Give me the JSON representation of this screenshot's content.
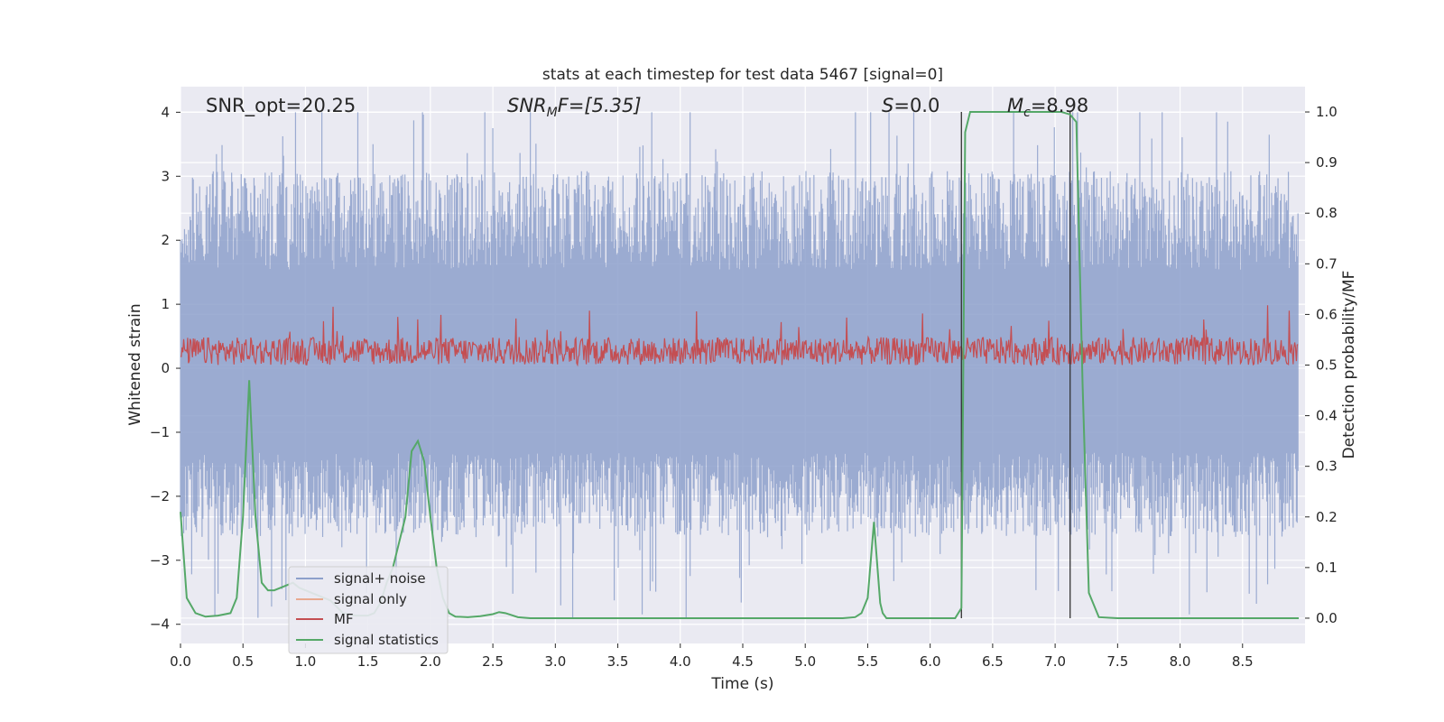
{
  "chart_data": {
    "type": "line",
    "title": "stats at each timestep for test data 5467 [signal=0]",
    "xlabel": "Time (s)",
    "ylabel_left": "Whitened strain",
    "ylabel_right": "Detection probability/MF",
    "xlim": [
      0,
      9
    ],
    "ylim_left": [
      -4.3,
      4.4
    ],
    "ylim_right": [
      -0.05,
      1.05
    ],
    "x_ticks": [
      0,
      0.5,
      1,
      1.5,
      2,
      2.5,
      3,
      3.5,
      4,
      4.5,
      5,
      5.5,
      6,
      6.5,
      7,
      7.5,
      8,
      8.5
    ],
    "x_tick_labels": [
      "0.0",
      "0.5",
      "1.0",
      "1.5",
      "2.0",
      "2.5",
      "3.0",
      "3.5",
      "4.0",
      "4.5",
      "5.0",
      "5.5",
      "6.0",
      "6.5",
      "7.0",
      "7.5",
      "8.0",
      "8.5"
    ],
    "y_left_ticks": [
      4,
      3,
      2,
      1,
      0,
      -1,
      -2,
      -3,
      -4
    ],
    "y_left_tick_labels": [
      "4",
      "3",
      "2",
      "1",
      "0",
      "−1",
      "−2",
      "−3",
      "−4"
    ],
    "y_right_ticks": [
      1.0,
      0.9,
      0.8,
      0.7,
      0.6,
      0.5,
      0.4,
      0.3,
      0.2,
      0.1,
      0.0
    ],
    "y_right_tick_labels": [
      "1.0",
      "0.9",
      "0.8",
      "0.7",
      "0.6",
      "0.5",
      "0.4",
      "0.3",
      "0.2",
      "0.1",
      "0.0"
    ],
    "grid": true,
    "legend_position": "lower-left",
    "annotations": {
      "snr_opt": "SNR_opt=20.25",
      "snr_mf_base": "SNR",
      "snr_mf_sub": "M",
      "snr_mf_rest": "F=[5.35]",
      "s_value_var": "S",
      "s_value_rest": "=0.0",
      "mc_var": "M",
      "mc_sub": "c",
      "mc_rest": "=8.98"
    },
    "vertical_markers": [
      6.25,
      7.12
    ],
    "series": [
      {
        "name": "signal+ noise",
        "color": "#8da0cb",
        "axis": "left",
        "description_values": "dense whitened noise, roughly within -3 to +3.5 strain, peaks up to about 4.0",
        "envelope": {
          "typical_min": -2.4,
          "typical_max": 2.8,
          "extreme_min": -3.9,
          "extreme_max": 4.0
        }
      },
      {
        "name": "signal only",
        "color": "#e8a990",
        "axis": "left"
      },
      {
        "name": "MF",
        "color": "#c44e52",
        "axis": "right",
        "envelope": {
          "baseline": 0.5,
          "typical_max": 0.55,
          "extreme_max": 0.62
        }
      },
      {
        "name": "signal statistics",
        "color": "#55a868",
        "axis": "right",
        "x": [
          0.0,
          0.05,
          0.12,
          0.2,
          0.3,
          0.4,
          0.45,
          0.5,
          0.55,
          0.6,
          0.65,
          0.7,
          0.75,
          0.8,
          0.9,
          0.95,
          1.0,
          1.05,
          1.1,
          1.15,
          1.2,
          1.3,
          1.4,
          1.5,
          1.55,
          1.6,
          1.65,
          1.7,
          1.75,
          1.8,
          1.85,
          1.9,
          1.95,
          2.0,
          2.05,
          2.1,
          2.15,
          2.2,
          2.3,
          2.4,
          2.5,
          2.55,
          2.6,
          2.65,
          2.7,
          2.8,
          3.0,
          3.5,
          4.0,
          4.5,
          5.0,
          5.3,
          5.4,
          5.45,
          5.5,
          5.55,
          5.6,
          5.62,
          5.65,
          5.7,
          5.8,
          6.0,
          6.2,
          6.25,
          6.28,
          6.32,
          6.4,
          6.6,
          6.8,
          7.0,
          7.05,
          7.12,
          7.17,
          7.22,
          7.27,
          7.35,
          7.5,
          8.0,
          8.5,
          8.95
        ],
        "y": [
          0.21,
          0.04,
          0.01,
          0.003,
          0.005,
          0.01,
          0.04,
          0.2,
          0.47,
          0.2,
          0.07,
          0.055,
          0.055,
          0.06,
          0.07,
          0.06,
          0.055,
          0.05,
          0.045,
          0.04,
          0.035,
          0.01,
          0.005,
          0.005,
          0.01,
          0.03,
          0.07,
          0.1,
          0.15,
          0.2,
          0.33,
          0.35,
          0.31,
          0.2,
          0.1,
          0.04,
          0.01,
          0.003,
          0.002,
          0.004,
          0.008,
          0.012,
          0.01,
          0.006,
          0.002,
          0.0,
          0.0,
          0.0,
          0.0,
          0.0,
          0.0,
          0.0,
          0.002,
          0.01,
          0.04,
          0.19,
          0.03,
          0.01,
          0.0,
          0.0,
          0.0,
          0.0,
          0.0,
          0.02,
          0.96,
          1.0,
          1.0,
          1.0,
          1.0,
          1.0,
          1.0,
          0.995,
          0.98,
          0.46,
          0.05,
          0.002,
          0.0,
          0.0,
          0.0,
          0.0
        ]
      }
    ]
  },
  "colors": {
    "plot_background": "#eaeaf2",
    "grid": "#ffffff",
    "marker_line": "#333333",
    "legend_background": "#eaeaf2",
    "legend_border": "#cccccc"
  }
}
